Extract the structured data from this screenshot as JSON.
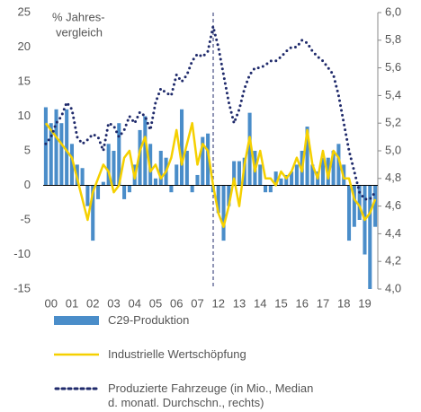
{
  "chart_data": {
    "type": "bar-line",
    "annotation": [
      "% Jahres-",
      "vergleich"
    ],
    "categories": [
      null,
      "00",
      null,
      null,
      null,
      "01",
      null,
      null,
      null,
      "02",
      null,
      null,
      null,
      "03",
      null,
      null,
      null,
      "04",
      null,
      null,
      null,
      "05",
      null,
      null,
      null,
      "06",
      null,
      null,
      null,
      "07",
      null,
      null,
      null,
      "12",
      null,
      null,
      null,
      "13",
      null,
      null,
      null,
      "14",
      null,
      null,
      null,
      "15",
      null,
      null,
      null,
      "16",
      null,
      null,
      null,
      "17",
      null,
      null,
      null,
      "18",
      null,
      null,
      null,
      "19",
      null,
      null
    ],
    "series": [
      {
        "name": "C29-Produktion",
        "type": "bar",
        "color": "#4a8dc9",
        "values": [
          11.3,
          9,
          11,
          9,
          11,
          6,
          3,
          2.5,
          -3,
          -8,
          -2,
          0.5,
          6,
          5,
          9,
          -2,
          -1,
          3,
          8,
          10,
          6,
          1,
          5,
          4,
          -1,
          3,
          11,
          5,
          -1,
          1.5,
          7,
          7.5,
          -1,
          -4,
          -8,
          -3,
          3.5,
          3.5,
          4,
          10.5,
          5,
          3,
          -1,
          -1,
          2,
          1,
          1.5,
          2,
          3,
          5,
          8.5,
          3,
          2,
          4,
          4,
          5,
          6,
          3,
          -8,
          -6,
          -5,
          -10,
          -15,
          -6
        ]
      },
      {
        "name": "Industrielle Wertschöpfung",
        "type": "line",
        "color": "#f5d000",
        "values": [
          9,
          8,
          7,
          6,
          5,
          4,
          1,
          -2,
          -5,
          -1,
          1,
          3,
          2,
          -1,
          0,
          4,
          5,
          1,
          5,
          7,
          2,
          3,
          1,
          2,
          4,
          8,
          3,
          6,
          9,
          3,
          6,
          5,
          0,
          -4,
          -6,
          -3,
          1,
          -3,
          3,
          7,
          2,
          5,
          1,
          1,
          0,
          2,
          1,
          2,
          4,
          2,
          8,
          3,
          1,
          5,
          1,
          5,
          4,
          1,
          1,
          -2,
          -3,
          -5,
          -4,
          -2
        ]
      },
      {
        "name": "Produzierte Fahrzeuge (in Mio., Median d. monatl. Durchschn., rechts)",
        "type": "dotted",
        "axis": "y2",
        "color": "#1f2a6b",
        "values": [
          5.05,
          5.1,
          5.2,
          5.25,
          5.35,
          5.3,
          5.1,
          5.05,
          5.08,
          5.12,
          5.1,
          5.0,
          5.2,
          5.18,
          5.1,
          5.15,
          5.25,
          5.2,
          5.28,
          5.25,
          5.15,
          5.35,
          5.45,
          5.42,
          5.4,
          5.55,
          5.5,
          5.55,
          5.65,
          5.7,
          5.68,
          5.72,
          5.9,
          5.75,
          5.55,
          5.35,
          5.2,
          5.3,
          5.45,
          5.55,
          5.6,
          5.6,
          5.62,
          5.65,
          5.65,
          5.68,
          5.72,
          5.75,
          5.75,
          5.8,
          5.78,
          5.72,
          5.68,
          5.65,
          5.6,
          5.55,
          5.4,
          5.2,
          5.0,
          4.85,
          4.7,
          4.65,
          4.65,
          4.7
        ]
      }
    ],
    "ylim": [
      -15,
      25
    ],
    "yticks": [
      -15,
      -10,
      -5,
      0,
      5,
      10,
      15,
      20,
      25
    ],
    "y2lim": [
      4,
      6
    ],
    "y2ticks": [
      {
        "value": 4,
        "label": "4,0"
      },
      {
        "value": 4.2,
        "label": "4,2"
      },
      {
        "value": 4.4,
        "label": "4,4"
      },
      {
        "value": 4.6,
        "label": "4,6"
      },
      {
        "value": 4.8,
        "label": "4,8"
      },
      {
        "value": 5,
        "label": "5,0"
      },
      {
        "value": 5.2,
        "label": "5,2"
      },
      {
        "value": 5.4,
        "label": "5,4"
      },
      {
        "value": 5.6,
        "label": "5,6"
      },
      {
        "value": 5.8,
        "label": "5,8"
      },
      {
        "value": 6,
        "label": "6,0"
      }
    ]
  }
}
